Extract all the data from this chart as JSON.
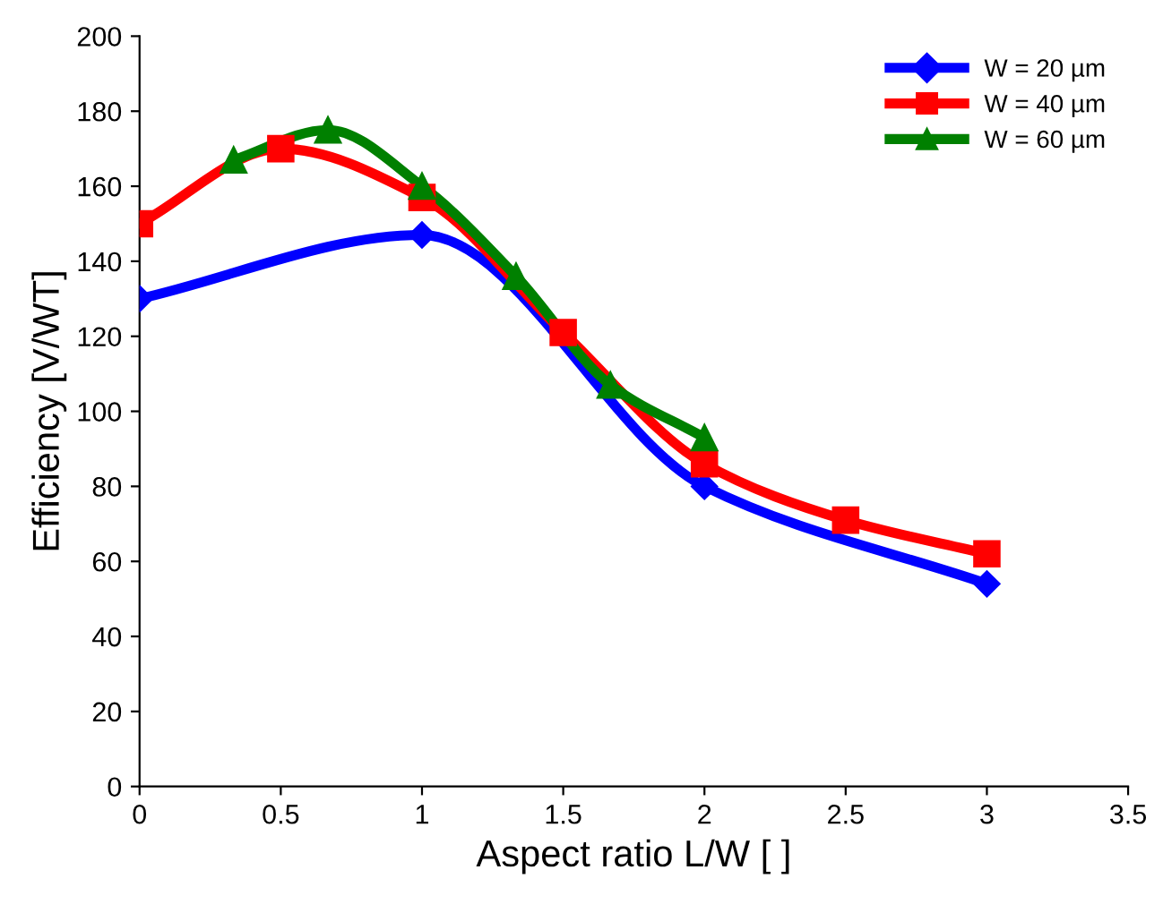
{
  "chart_data": {
    "type": "line",
    "xlabel": "Aspect ratio L/W [ ]",
    "ylabel": "Efficiency [V/WT]",
    "xlim": [
      0,
      3.5
    ],
    "xticks": [
      0,
      0.5,
      1,
      1.5,
      2,
      2.5,
      3,
      3.5
    ],
    "ylim": [
      0,
      200
    ],
    "yticks": [
      0,
      20,
      40,
      60,
      80,
      100,
      120,
      140,
      160,
      180,
      200
    ],
    "grid": false,
    "legend": "top right",
    "line_style": "solid",
    "series": [
      {
        "name": "W = 20 µm",
        "color": "#0000ff",
        "marker": "diamond",
        "x": [
          0,
          1,
          2,
          3
        ],
        "values": [
          130,
          147,
          80,
          54
        ]
      },
      {
        "name": "W = 40 µm",
        "color": "#ff0000",
        "marker": "square",
        "x": [
          0,
          0.5,
          1,
          1.5,
          2,
          2.5,
          3
        ],
        "values": [
          150,
          170,
          157,
          121,
          86,
          71,
          62
        ]
      },
      {
        "name": "W = 60 µm",
        "color": "#008000",
        "marker": "triangle",
        "x": [
          0.333,
          0.667,
          1,
          1.333,
          1.667,
          2
        ],
        "values": [
          167,
          175,
          160,
          136,
          107,
          93
        ]
      }
    ]
  }
}
